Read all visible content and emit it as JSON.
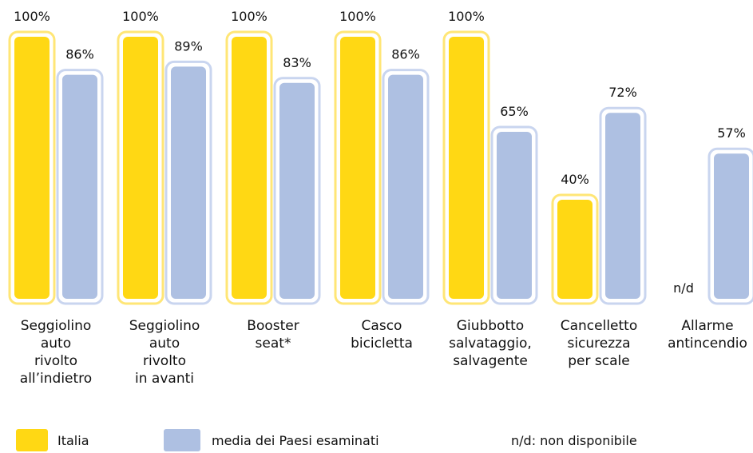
{
  "chart_data": {
    "type": "bar",
    "categories": [
      "Seggiolino\nauto\nrivolto\nall’indietro",
      "Seggiolino\nauto\nrivolto\nin avanti",
      "Booster\nseat*",
      "Casco\nbicicletta",
      "Giubbotto\nsalvataggio,\nsalvagente",
      "Cancelletto\nsicurezza\nper scale",
      "Allarme\nantincendio"
    ],
    "series": [
      {
        "name": "Italia",
        "color": "#FFD814",
        "border": "#FFE676",
        "values": [
          100,
          100,
          100,
          100,
          100,
          40,
          null
        ],
        "value_labels": [
          "100%",
          "100%",
          "100%",
          "100%",
          "100%",
          "40%",
          "n/d"
        ]
      },
      {
        "name": "media dei Paesi esaminati",
        "color": "#AEC0E2",
        "border": "#C9D5EF",
        "values": [
          86,
          89,
          83,
          86,
          65,
          72,
          57
        ],
        "value_labels": [
          "86%",
          "89%",
          "83%",
          "86%",
          "65%",
          "72%",
          "57%"
        ]
      }
    ],
    "note": "n/d: non disponibile"
  }
}
